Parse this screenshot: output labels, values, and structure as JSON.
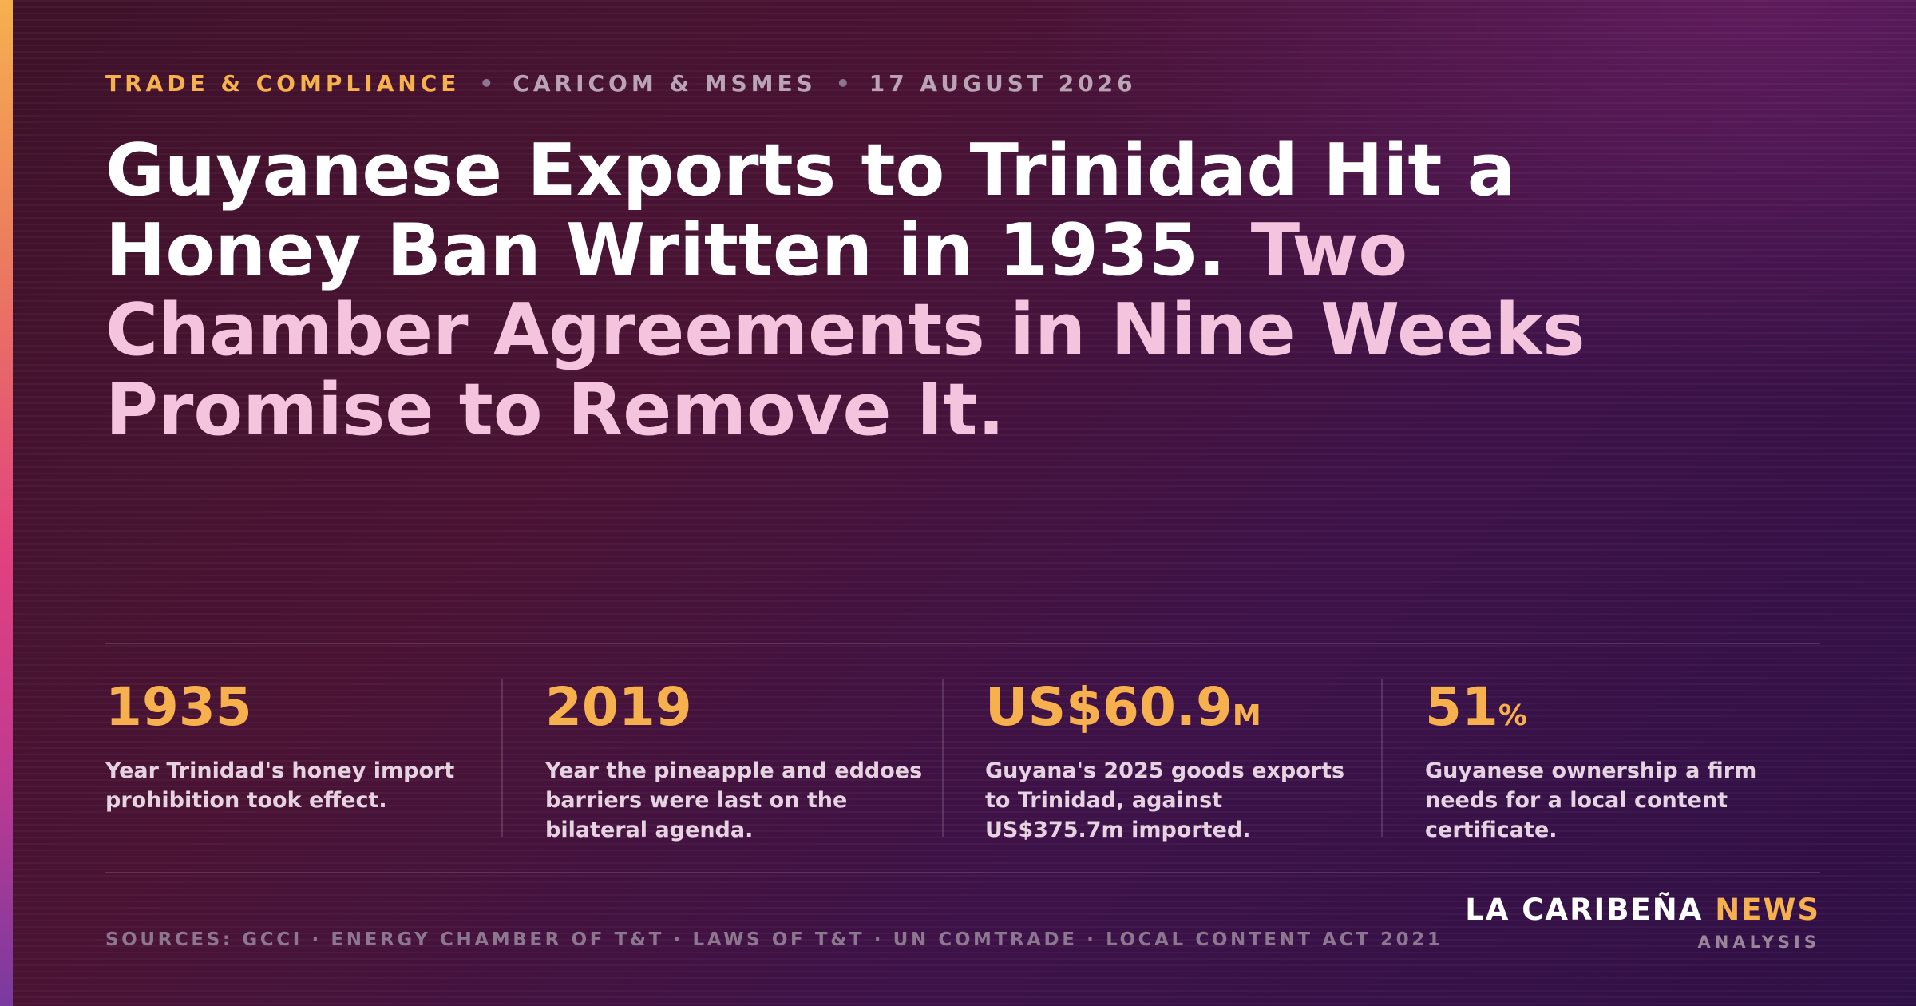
{
  "kicker": {
    "category": "TRADE & COMPLIANCE",
    "separator": "•",
    "topic": "CARICOM & MSMES",
    "date": "17 AUGUST 2026"
  },
  "headline": {
    "part1": "Guyanese Exports to Trinidad Hit a Honey Ban Written in 1935.",
    "part2": "Two Chamber Agreements in Nine Weeks Promise to Remove It."
  },
  "stats": [
    {
      "value": "1935",
      "unit": "",
      "description": "Year Trinidad's honey import prohibition took effect."
    },
    {
      "value": "2019",
      "unit": "",
      "description": "Year the pineapple and eddoes barriers were last on the bilateral agenda."
    },
    {
      "value": "US$60.9",
      "unit": "M",
      "description": "Guyana's 2025 goods exports to Trinidad, against US$375.7m imported."
    },
    {
      "value": "51",
      "unit": "%",
      "description": "Guyanese ownership a firm needs for a local content certificate."
    }
  ],
  "footer": {
    "sources": "SOURCES: GCCI · ENERGY CHAMBER OF T&T · LAWS OF T&T · UN COMTRADE · LOCAL CONTENT ACT 2021",
    "brand_main": "LA CARIBEÑA",
    "brand_highlight": "NEWS",
    "brand_sub": "ANALYSIS"
  },
  "colors": {
    "accent": "#f6b04e",
    "headline_highlight": "#f4c4de",
    "background": "#45132f"
  }
}
